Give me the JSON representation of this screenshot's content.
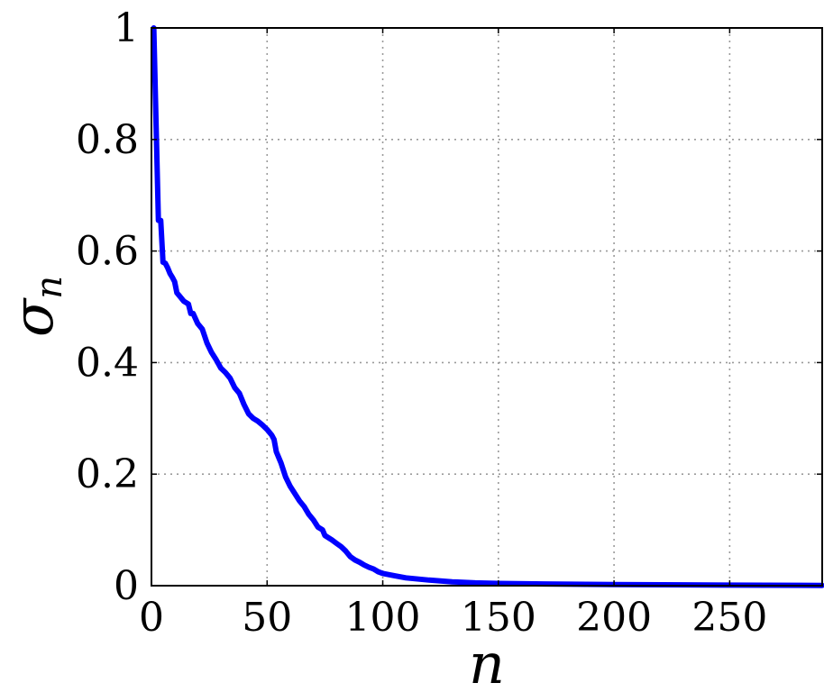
{
  "chart_data": {
    "type": "line",
    "title": "",
    "xlabel": "n",
    "ylabel": "σ",
    "ylabel_subscript": "n",
    "xlim": [
      0,
      290
    ],
    "ylim": [
      0,
      1
    ],
    "grid": true,
    "x_ticks": [
      0,
      50,
      100,
      150,
      200,
      250
    ],
    "x_tick_labels": [
      "0",
      "50",
      "100",
      "150",
      "200",
      "250"
    ],
    "y_ticks": [
      0,
      0.2,
      0.4,
      0.6,
      0.8,
      1
    ],
    "y_tick_labels": [
      "0",
      "0.2",
      "0.4",
      "0.6",
      "0.8",
      "1"
    ],
    "series": [
      {
        "color": "#0000ff",
        "x": [
          1,
          2,
          3,
          4,
          5,
          6,
          7,
          8,
          9,
          10,
          11,
          12,
          14,
          16,
          17,
          18,
          20,
          22,
          24,
          26,
          28,
          30,
          32,
          34,
          36,
          38,
          40,
          42,
          44,
          46,
          48,
          50,
          52,
          53,
          54,
          56,
          58,
          60,
          62,
          64,
          66,
          68,
          70,
          72,
          74,
          75,
          78,
          80,
          82,
          84,
          86,
          88,
          90,
          92,
          94,
          96,
          98,
          100,
          105,
          110,
          120,
          130,
          140,
          150,
          170,
          200,
          250,
          290
        ],
        "y": [
          1.0,
          0.83,
          0.655,
          0.655,
          0.58,
          0.578,
          0.57,
          0.56,
          0.553,
          0.545,
          0.525,
          0.52,
          0.51,
          0.505,
          0.488,
          0.488,
          0.47,
          0.46,
          0.435,
          0.418,
          0.405,
          0.39,
          0.382,
          0.372,
          0.355,
          0.345,
          0.325,
          0.308,
          0.3,
          0.295,
          0.288,
          0.28,
          0.27,
          0.262,
          0.24,
          0.22,
          0.195,
          0.178,
          0.165,
          0.152,
          0.142,
          0.128,
          0.118,
          0.105,
          0.1,
          0.09,
          0.082,
          0.076,
          0.07,
          0.062,
          0.052,
          0.046,
          0.042,
          0.037,
          0.033,
          0.03,
          0.025,
          0.022,
          0.018,
          0.014,
          0.01,
          0.007,
          0.005,
          0.004,
          0.003,
          0.002,
          0.001,
          0.0005
        ]
      }
    ]
  }
}
